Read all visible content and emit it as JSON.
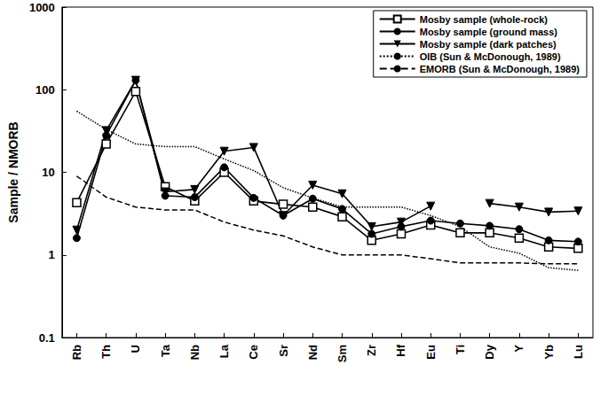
{
  "chart_data": {
    "type": "line",
    "ylabel": "Sample / NMORB",
    "categories": [
      "Rb",
      "Th",
      "U",
      "Ta",
      "Nb",
      "La",
      "Ce",
      "Sr",
      "Nd",
      "Sm",
      "Zr",
      "Hf",
      "Eu",
      "Ti",
      "Dy",
      "Y",
      "Yb",
      "Lu"
    ],
    "series": [
      {
        "name": "Mosby sample (whole-rock)",
        "color": "#000000",
        "marker": "open_square",
        "line_style": "solid",
        "values": [
          4.3,
          22,
          95,
          6.7,
          4.5,
          10,
          4.5,
          4.1,
          3.8,
          2.9,
          1.5,
          1.8,
          2.3,
          1.85,
          1.85,
          1.6,
          1.25,
          1.2
        ]
      },
      {
        "name": "Mosby sample (ground mass)",
        "color": "#000000",
        "marker": "circle",
        "line_style": "solid",
        "values": [
          1.6,
          28,
          130,
          5.2,
          5.0,
          11.5,
          4.9,
          3.0,
          4.8,
          3.6,
          1.8,
          2.2,
          2.6,
          2.4,
          2.25,
          2.05,
          1.5,
          1.45
        ]
      },
      {
        "name": "Mosby sample (dark patches)",
        "color": "#000000",
        "marker": "triangle_down",
        "line_style": "solid",
        "values": [
          2.0,
          32,
          130,
          5.8,
          6.2,
          18,
          20,
          3.0,
          7.0,
          5.5,
          2.2,
          2.5,
          3.9,
          null,
          4.2,
          3.8,
          3.3,
          3.4
        ]
      },
      {
        "name": "OIB (Sun & McDonough, 1989)",
        "color": "#000000",
        "marker": "none",
        "line_style": "dotted",
        "values": [
          55,
          33,
          22,
          20.5,
          20.5,
          14.5,
          10.5,
          6.5,
          4.9,
          3.8,
          3.8,
          3.8,
          3.0,
          2.2,
          1.25,
          1.05,
          0.7,
          0.65
        ]
      },
      {
        "name": "EMORB (Sun & McDonough, 1989)",
        "color": "#000000",
        "marker": "none",
        "line_style": "dashed",
        "values": [
          9,
          5,
          3.8,
          3.5,
          3.5,
          2.5,
          2.0,
          1.7,
          1.25,
          1.0,
          1.0,
          1.0,
          0.9,
          0.8,
          0.8,
          0.8,
          0.78,
          0.78
        ]
      }
    ],
    "ylim": [
      0.1,
      1000
    ],
    "yticks": [
      0.1,
      1,
      10,
      100,
      1000
    ],
    "log": "y",
    "grid": false,
    "legend": "upper right"
  }
}
